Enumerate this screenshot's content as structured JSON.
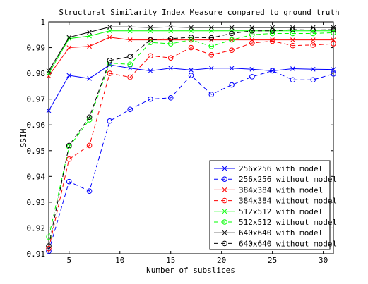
{
  "chart_data": {
    "type": "line",
    "title": "Structural Similarity Index Measure compared to ground truth",
    "xlabel": "Number of subslices",
    "ylabel": "SSIM",
    "xlim": [
      3,
      31
    ],
    "ylim": [
      0.91,
      1.0
    ],
    "xticks": [
      5,
      10,
      15,
      20,
      25,
      30
    ],
    "xtick_labels": [
      "5",
      "10",
      "15",
      "20",
      "25",
      "30"
    ],
    "yticks": [
      0.91,
      0.92,
      0.93,
      0.94,
      0.95,
      0.96,
      0.97,
      0.98,
      0.99,
      1.0
    ],
    "ytick_labels": [
      "0.91",
      "0.92",
      "0.93",
      "0.94",
      "0.95",
      "0.96",
      "0.97",
      "0.98",
      "0.99",
      "1"
    ],
    "grid": false,
    "legend_position": "bottom-right",
    "x": [
      3,
      5,
      7,
      9,
      11,
      13,
      15,
      17,
      19,
      21,
      23,
      25,
      27,
      29,
      31
    ],
    "series": [
      {
        "name": "256x256 with model",
        "color": "#0000ff",
        "dash": "solid",
        "marker": "x",
        "values": [
          0.9655,
          0.9792,
          0.978,
          0.9833,
          0.982,
          0.981,
          0.982,
          0.9813,
          0.982,
          0.982,
          0.9816,
          0.981,
          0.9818,
          0.9816,
          0.9815
        ]
      },
      {
        "name": "256x256 without model",
        "color": "#0000ff",
        "dash": "dashed",
        "marker": "o",
        "values": [
          0.911,
          0.938,
          0.9343,
          0.9615,
          0.966,
          0.97,
          0.9705,
          0.9792,
          0.9718,
          0.9755,
          0.9787,
          0.981,
          0.9775,
          0.9775,
          0.9798
        ]
      },
      {
        "name": "384x384 with model",
        "color": "#ff0000",
        "dash": "solid",
        "marker": "x",
        "values": [
          0.979,
          0.99,
          0.9905,
          0.994,
          0.993,
          0.993,
          0.993,
          0.993,
          0.993,
          0.993,
          0.993,
          0.993,
          0.993,
          0.993,
          0.993
        ]
      },
      {
        "name": "384x384 without model",
        "color": "#ff0000",
        "dash": "dashed",
        "marker": "o",
        "values": [
          0.912,
          0.9467,
          0.952,
          0.98,
          0.9785,
          0.9868,
          0.986,
          0.99,
          0.9872,
          0.989,
          0.9918,
          0.9925,
          0.9908,
          0.991,
          0.9915
        ]
      },
      {
        "name": "512x512 with model",
        "color": "#00ff00",
        "dash": "solid",
        "marker": "x",
        "values": [
          0.98,
          0.9935,
          0.9945,
          0.9965,
          0.9965,
          0.9965,
          0.9965,
          0.9965,
          0.9965,
          0.9965,
          0.9965,
          0.9965,
          0.9965,
          0.9965,
          0.9965
        ]
      },
      {
        "name": "512x512 without model",
        "color": "#00ff00",
        "dash": "dashed",
        "marker": "o",
        "values": [
          0.9165,
          0.9515,
          0.962,
          0.984,
          0.9835,
          0.992,
          0.9915,
          0.993,
          0.9905,
          0.993,
          0.995,
          0.9955,
          0.9955,
          0.9955,
          0.9958
        ]
      },
      {
        "name": "640x640 with model",
        "color": "#000000",
        "dash": "solid",
        "marker": "x",
        "values": [
          0.981,
          0.994,
          0.996,
          0.998,
          0.998,
          0.9978,
          0.998,
          0.9978,
          0.9978,
          0.9978,
          0.9978,
          0.9978,
          0.9978,
          0.9978,
          0.9978
        ]
      },
      {
        "name": "640x640 without model",
        "color": "#000000",
        "dash": "dashed",
        "marker": "o",
        "values": [
          0.913,
          0.952,
          0.963,
          0.985,
          0.9865,
          0.993,
          0.9935,
          0.994,
          0.9938,
          0.9955,
          0.9965,
          0.9965,
          0.997,
          0.9968,
          0.997
        ]
      }
    ]
  }
}
